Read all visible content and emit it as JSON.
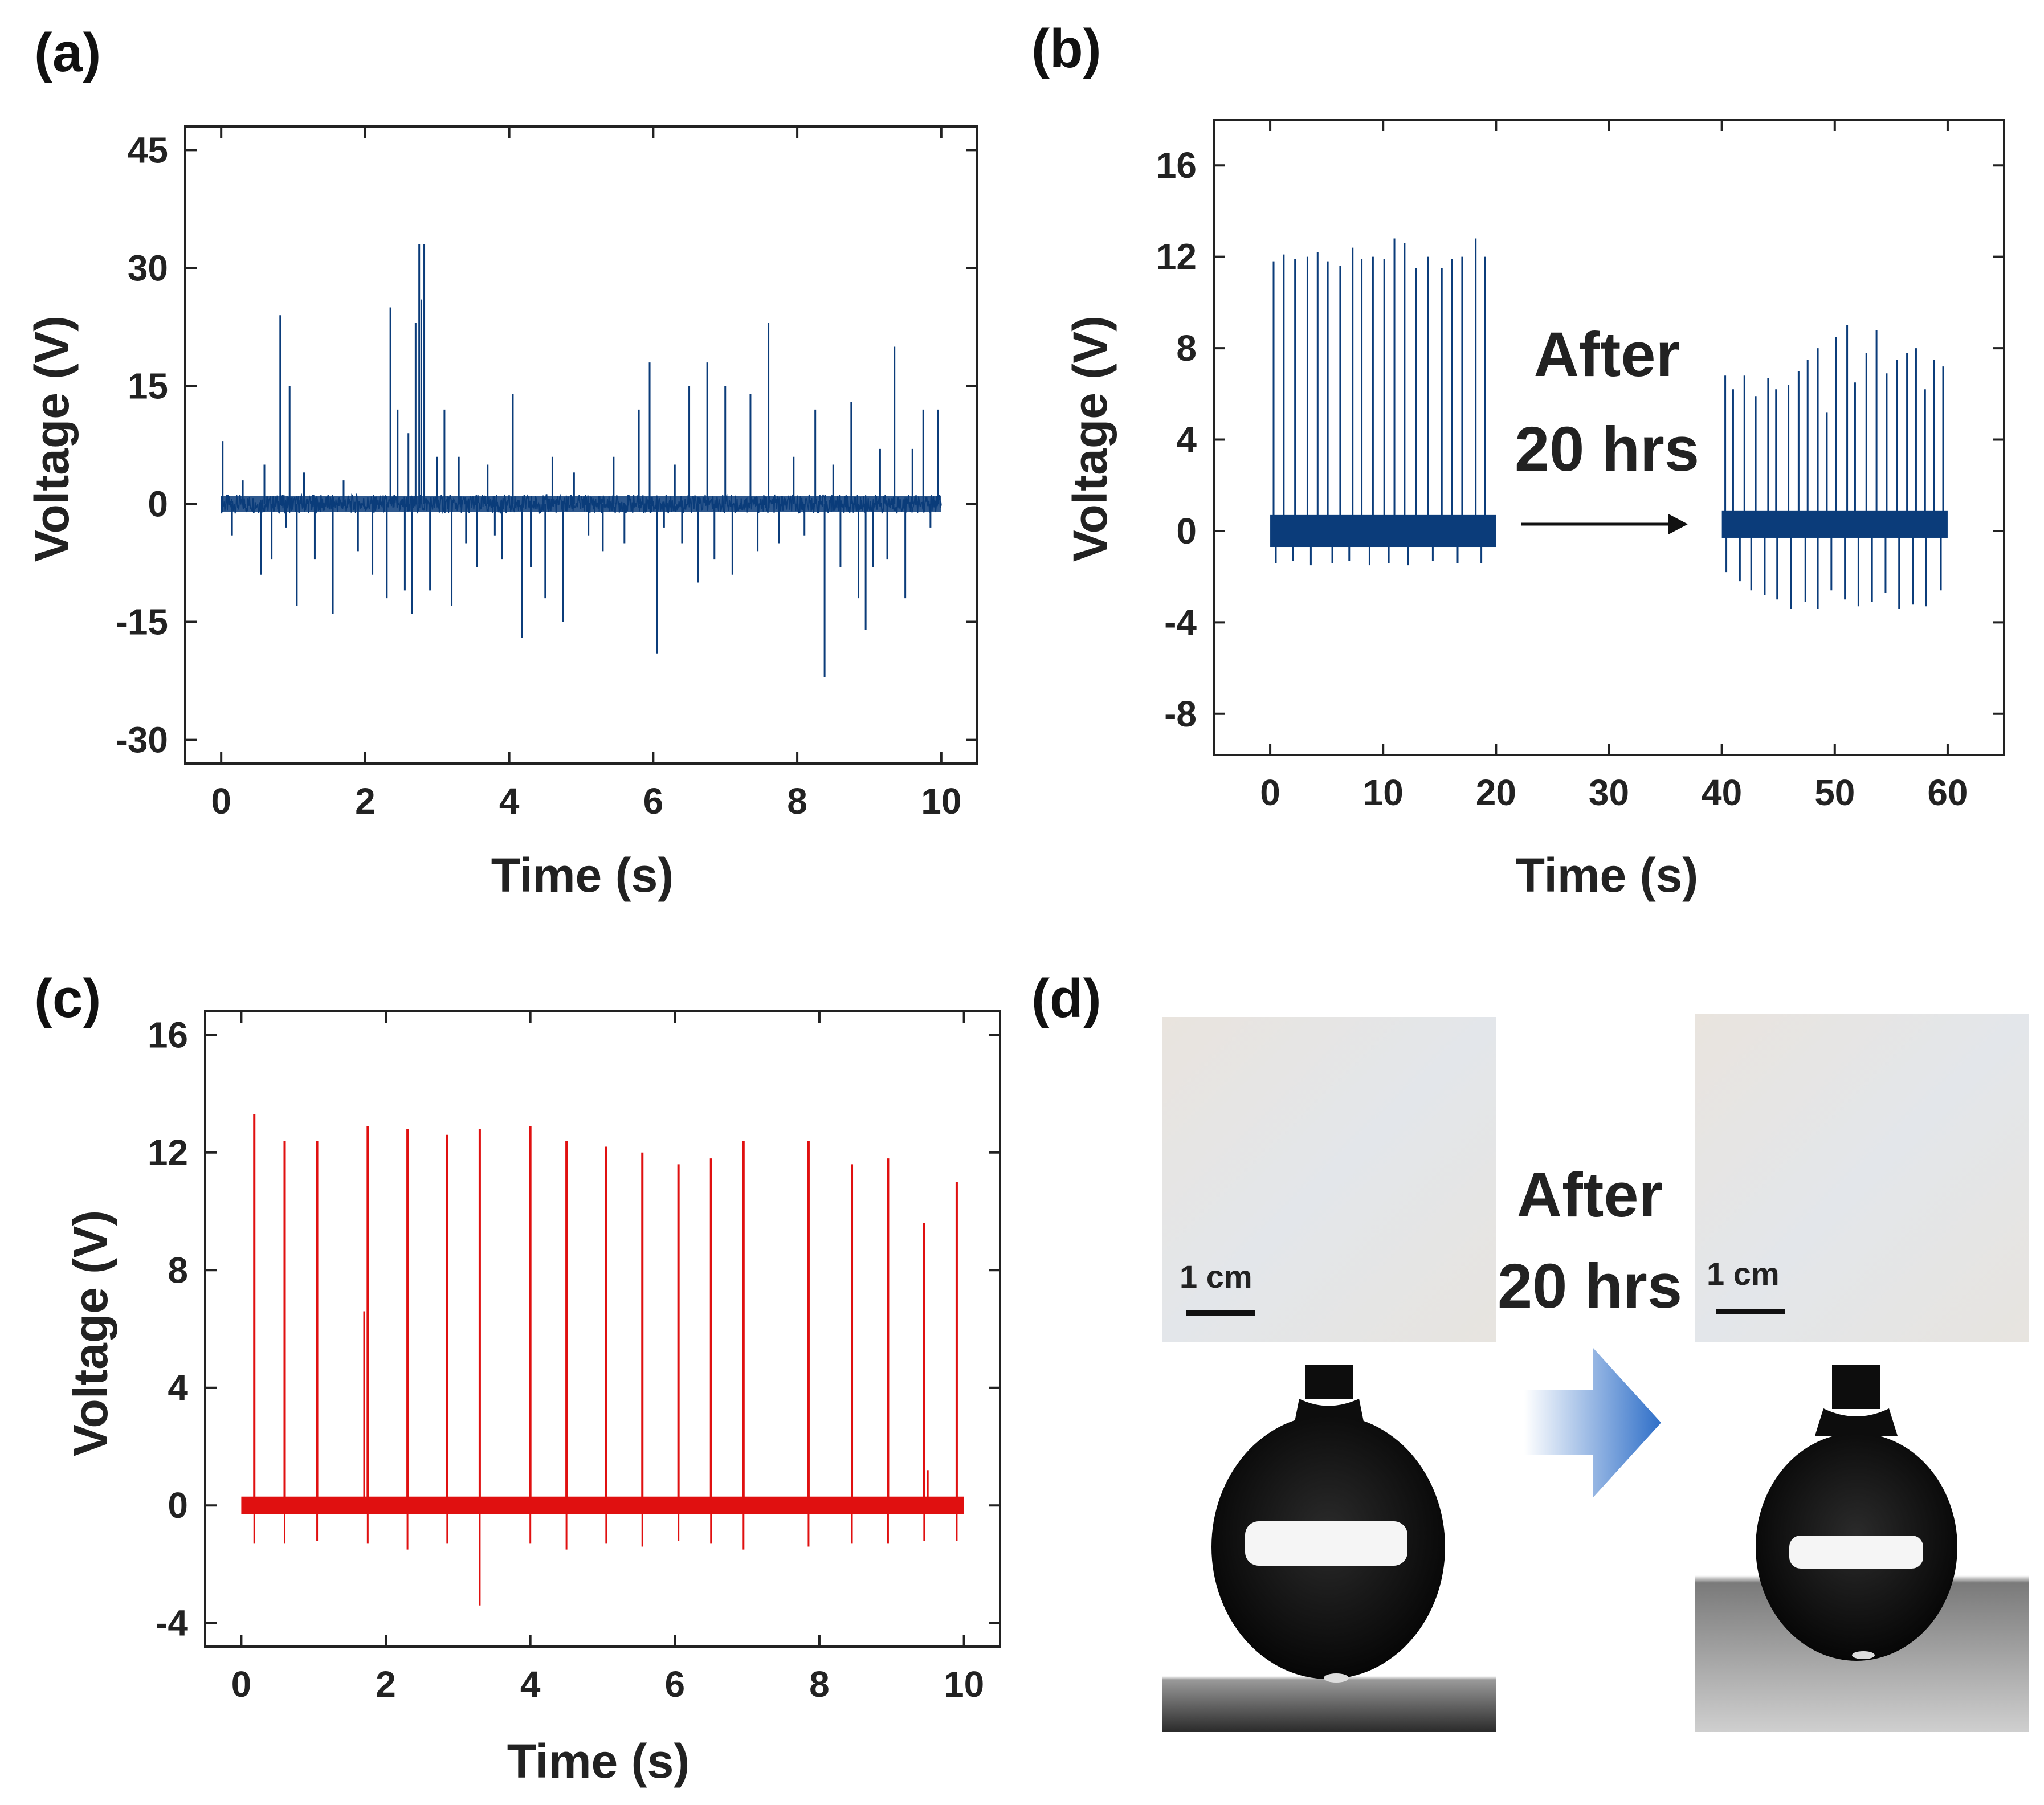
{
  "colors": {
    "blue": "#0b3c7a",
    "red": "#e01010",
    "arrow_blue": "#2f6fc8"
  },
  "chart_data": [
    {
      "id": "a",
      "panel_label": "(a)",
      "type": "line",
      "title": "",
      "xlabel": "Time (s)",
      "ylabel": "Voltage (V)",
      "xlim": [
        -0.5,
        10.5
      ],
      "ylim": [
        -33,
        48
      ],
      "xticks": [
        0,
        2,
        4,
        6,
        8,
        10
      ],
      "yticks": [
        -30,
        -15,
        0,
        15,
        30,
        45
      ],
      "baseline": {
        "x": [
          0,
          10
        ],
        "y": [
          -1.2,
          1.2
        ]
      },
      "series": [
        {
          "name": "voltage",
          "color": "#0b3c7a",
          "spikes": [
            [
              0.02,
              8
            ],
            [
              0.15,
              -4
            ],
            [
              0.3,
              3
            ],
            [
              0.55,
              -9
            ],
            [
              0.6,
              5
            ],
            [
              0.7,
              -7
            ],
            [
              0.82,
              24
            ],
            [
              0.9,
              -3
            ],
            [
              0.95,
              15
            ],
            [
              1.05,
              -13
            ],
            [
              1.15,
              4
            ],
            [
              1.3,
              -7
            ],
            [
              1.55,
              -14
            ],
            [
              1.7,
              3
            ],
            [
              1.9,
              -6
            ],
            [
              2.1,
              -9
            ],
            [
              2.3,
              -12
            ],
            [
              2.35,
              25
            ],
            [
              2.45,
              12
            ],
            [
              2.55,
              -11
            ],
            [
              2.6,
              9
            ],
            [
              2.65,
              -14
            ],
            [
              2.7,
              23
            ],
            [
              2.75,
              33
            ],
            [
              2.78,
              26
            ],
            [
              2.82,
              33
            ],
            [
              2.9,
              -11
            ],
            [
              3.0,
              6
            ],
            [
              3.1,
              12
            ],
            [
              3.2,
              -13
            ],
            [
              3.3,
              6
            ],
            [
              3.4,
              -5
            ],
            [
              3.55,
              -8
            ],
            [
              3.7,
              5
            ],
            [
              3.8,
              -4
            ],
            [
              3.9,
              -7
            ],
            [
              4.05,
              14
            ],
            [
              4.18,
              -17
            ],
            [
              4.3,
              -8
            ],
            [
              4.5,
              -12
            ],
            [
              4.6,
              6
            ],
            [
              4.75,
              -15
            ],
            [
              4.9,
              4
            ],
            [
              5.1,
              -4
            ],
            [
              5.3,
              -6
            ],
            [
              5.45,
              6
            ],
            [
              5.6,
              -5
            ],
            [
              5.8,
              12
            ],
            [
              5.95,
              18
            ],
            [
              6.05,
              -19
            ],
            [
              6.15,
              -3
            ],
            [
              6.3,
              5
            ],
            [
              6.4,
              -5
            ],
            [
              6.5,
              15
            ],
            [
              6.62,
              -10
            ],
            [
              6.75,
              18
            ],
            [
              6.85,
              -7
            ],
            [
              7.0,
              15
            ],
            [
              7.1,
              -9
            ],
            [
              7.35,
              14
            ],
            [
              7.45,
              -6
            ],
            [
              7.6,
              23
            ],
            [
              7.75,
              -5
            ],
            [
              7.95,
              6
            ],
            [
              8.1,
              -4
            ],
            [
              8.25,
              12
            ],
            [
              8.38,
              -22
            ],
            [
              8.5,
              5
            ],
            [
              8.6,
              -8
            ],
            [
              8.75,
              13
            ],
            [
              8.85,
              -12
            ],
            [
              8.95,
              -16
            ],
            [
              9.05,
              -8
            ],
            [
              9.15,
              7
            ],
            [
              9.25,
              -7
            ],
            [
              9.35,
              20
            ],
            [
              9.5,
              -12
            ],
            [
              9.6,
              7
            ],
            [
              9.75,
              12
            ],
            [
              9.85,
              -3
            ],
            [
              9.95,
              12
            ]
          ]
        }
      ]
    },
    {
      "id": "b",
      "panel_label": "(b)",
      "type": "line",
      "title": "",
      "xlabel": "Time (s)",
      "ylabel": "Voltage (V)",
      "xlim": [
        -5,
        65
      ],
      "ylim": [
        -9.8,
        18
      ],
      "xticks": [
        0,
        10,
        20,
        30,
        40,
        50,
        60
      ],
      "yticks": [
        -8,
        -4,
        0,
        4,
        8,
        12,
        16
      ],
      "annotation": {
        "line1": "After",
        "line2": "20 hrs"
      },
      "segments": [
        {
          "name": "before",
          "color": "#0b3c7a",
          "x": [
            0,
            20
          ],
          "band": [
            -0.7,
            0.7
          ],
          "peaks": [
            [
              0.3,
              11.8
            ],
            [
              1.2,
              12.1
            ],
            [
              2.2,
              11.9
            ],
            [
              3.3,
              12.0
            ],
            [
              4.2,
              12.2
            ],
            [
              5.1,
              11.8
            ],
            [
              6.2,
              11.6
            ],
            [
              7.3,
              12.4
            ],
            [
              8.1,
              11.9
            ],
            [
              9.1,
              12.0
            ],
            [
              10.1,
              11.9
            ],
            [
              11.0,
              12.8
            ],
            [
              11.9,
              12.6
            ],
            [
              12.9,
              11.5
            ],
            [
              14.0,
              12.0
            ],
            [
              15.2,
              11.5
            ],
            [
              16.1,
              11.9
            ],
            [
              17.0,
              12.0
            ],
            [
              18.2,
              12.8
            ],
            [
              19.0,
              12.0
            ]
          ],
          "troughs": [
            [
              0.5,
              -1.4
            ],
            [
              2.0,
              -1.3
            ],
            [
              3.6,
              -1.5
            ],
            [
              5.5,
              -1.4
            ],
            [
              7.0,
              -1.3
            ],
            [
              8.8,
              -1.5
            ],
            [
              10.5,
              -1.4
            ],
            [
              12.2,
              -1.5
            ],
            [
              14.4,
              -1.3
            ],
            [
              16.6,
              -1.4
            ],
            [
              18.7,
              -1.4
            ]
          ]
        },
        {
          "name": "after",
          "color": "#0b3c7a",
          "x": [
            40,
            60
          ],
          "band": [
            -0.3,
            0.9
          ],
          "peaks": [
            [
              40.3,
              6.8
            ],
            [
              41.0,
              6.2
            ],
            [
              42.0,
              6.8
            ],
            [
              43.0,
              5.9
            ],
            [
              44.1,
              6.7
            ],
            [
              44.8,
              6.2
            ],
            [
              45.9,
              6.4
            ],
            [
              46.8,
              7.0
            ],
            [
              47.6,
              7.5
            ],
            [
              48.5,
              8.0
            ],
            [
              49.3,
              5.2
            ],
            [
              50.1,
              8.5
            ],
            [
              51.1,
              9.0
            ],
            [
              51.8,
              6.5
            ],
            [
              52.8,
              7.8
            ],
            [
              53.7,
              8.8
            ],
            [
              54.6,
              6.9
            ],
            [
              55.5,
              7.5
            ],
            [
              56.4,
              7.8
            ],
            [
              57.2,
              8.0
            ],
            [
              58.0,
              6.2
            ],
            [
              58.8,
              7.5
            ],
            [
              59.6,
              7.2
            ]
          ],
          "troughs": [
            [
              40.4,
              -1.8
            ],
            [
              41.6,
              -2.2
            ],
            [
              42.6,
              -2.6
            ],
            [
              43.8,
              -2.8
            ],
            [
              44.9,
              -3.0
            ],
            [
              46.1,
              -3.4
            ],
            [
              47.4,
              -3.1
            ],
            [
              48.5,
              -3.4
            ],
            [
              49.7,
              -2.6
            ],
            [
              50.9,
              -3.0
            ],
            [
              52.1,
              -3.3
            ],
            [
              53.3,
              -3.1
            ],
            [
              54.5,
              -2.7
            ],
            [
              55.7,
              -3.4
            ],
            [
              56.9,
              -3.2
            ],
            [
              58.1,
              -3.3
            ],
            [
              59.4,
              -2.6
            ]
          ]
        }
      ]
    },
    {
      "id": "c",
      "panel_label": "(c)",
      "type": "line",
      "title": "",
      "xlabel": "Time (s)",
      "ylabel": "Voltage (V)",
      "xlim": [
        -0.5,
        10.5
      ],
      "ylim": [
        -4.8,
        16.8
      ],
      "xticks": [
        0,
        2,
        4,
        6,
        8,
        10
      ],
      "yticks": [
        -4,
        0,
        4,
        8,
        12,
        16
      ],
      "baseline": {
        "x": [
          0,
          10
        ],
        "y": [
          -0.3,
          0.3
        ]
      },
      "series": [
        {
          "name": "voltage",
          "color": "#e01010",
          "spikes": [
            [
              0.18,
              13.3
            ],
            [
              0.6,
              12.4
            ],
            [
              1.05,
              12.4
            ],
            [
              1.75,
              12.9
            ],
            [
              2.3,
              12.8
            ],
            [
              2.85,
              12.6
            ],
            [
              3.3,
              12.8
            ],
            [
              4.0,
              12.9
            ],
            [
              4.5,
              12.4
            ],
            [
              5.05,
              12.2
            ],
            [
              5.55,
              12.0
            ],
            [
              6.05,
              11.6
            ],
            [
              6.5,
              11.8
            ],
            [
              6.95,
              12.4
            ],
            [
              7.85,
              12.4
            ],
            [
              8.45,
              11.6
            ],
            [
              8.95,
              11.8
            ],
            [
              9.45,
              9.6
            ],
            [
              9.9,
              11.0
            ]
          ],
          "minor_spikes": [
            [
              1.7,
              6.6
            ],
            [
              2.3,
              3.5
            ],
            [
              4.5,
              9.4
            ],
            [
              9.5,
              1.2
            ]
          ],
          "troughs": [
            [
              0.18,
              -1.3
            ],
            [
              0.6,
              -1.3
            ],
            [
              1.05,
              -1.2
            ],
            [
              1.75,
              -1.3
            ],
            [
              2.3,
              -1.5
            ],
            [
              2.85,
              -1.3
            ],
            [
              3.3,
              -3.4
            ],
            [
              4.0,
              -1.3
            ],
            [
              4.5,
              -1.5
            ],
            [
              5.05,
              -1.3
            ],
            [
              5.55,
              -1.4
            ],
            [
              6.05,
              -1.2
            ],
            [
              6.5,
              -1.3
            ],
            [
              6.95,
              -1.5
            ],
            [
              7.85,
              -1.4
            ],
            [
              8.45,
              -1.3
            ],
            [
              8.95,
              -1.3
            ],
            [
              9.45,
              -1.2
            ],
            [
              9.9,
              -1.2
            ]
          ]
        }
      ]
    }
  ],
  "panel_d": {
    "panel_label": "(d)",
    "annotation": {
      "line1": "After",
      "line2": "20 hrs"
    },
    "scale_bar_left": "1 cm",
    "scale_bar_right": "1 cm",
    "icons": {
      "photo": "surface-photo-icon",
      "droplet": "water-droplet-icon",
      "arrow": "right-arrow-icon"
    }
  }
}
